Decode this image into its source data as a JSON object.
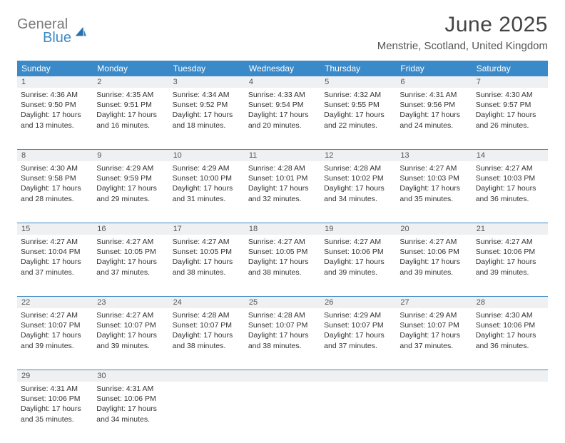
{
  "brand": {
    "part1": "General",
    "part2": "Blue"
  },
  "title": "June 2025",
  "location": "Menstrie, Scotland, United Kingdom",
  "colors": {
    "header_bg": "#3a8ac9",
    "header_text": "#ffffff",
    "daynum_bg": "#eef0f2",
    "border": "#3a8ac9",
    "text": "#333333"
  },
  "dayNames": [
    "Sunday",
    "Monday",
    "Tuesday",
    "Wednesday",
    "Thursday",
    "Friday",
    "Saturday"
  ],
  "weeks": [
    [
      {
        "n": "1",
        "sr": "4:36 AM",
        "ss": "9:50 PM",
        "dl": "17 hours and 13 minutes."
      },
      {
        "n": "2",
        "sr": "4:35 AM",
        "ss": "9:51 PM",
        "dl": "17 hours and 16 minutes."
      },
      {
        "n": "3",
        "sr": "4:34 AM",
        "ss": "9:52 PM",
        "dl": "17 hours and 18 minutes."
      },
      {
        "n": "4",
        "sr": "4:33 AM",
        "ss": "9:54 PM",
        "dl": "17 hours and 20 minutes."
      },
      {
        "n": "5",
        "sr": "4:32 AM",
        "ss": "9:55 PM",
        "dl": "17 hours and 22 minutes."
      },
      {
        "n": "6",
        "sr": "4:31 AM",
        "ss": "9:56 PM",
        "dl": "17 hours and 24 minutes."
      },
      {
        "n": "7",
        "sr": "4:30 AM",
        "ss": "9:57 PM",
        "dl": "17 hours and 26 minutes."
      }
    ],
    [
      {
        "n": "8",
        "sr": "4:30 AM",
        "ss": "9:58 PM",
        "dl": "17 hours and 28 minutes."
      },
      {
        "n": "9",
        "sr": "4:29 AM",
        "ss": "9:59 PM",
        "dl": "17 hours and 29 minutes."
      },
      {
        "n": "10",
        "sr": "4:29 AM",
        "ss": "10:00 PM",
        "dl": "17 hours and 31 minutes."
      },
      {
        "n": "11",
        "sr": "4:28 AM",
        "ss": "10:01 PM",
        "dl": "17 hours and 32 minutes."
      },
      {
        "n": "12",
        "sr": "4:28 AM",
        "ss": "10:02 PM",
        "dl": "17 hours and 34 minutes."
      },
      {
        "n": "13",
        "sr": "4:27 AM",
        "ss": "10:03 PM",
        "dl": "17 hours and 35 minutes."
      },
      {
        "n": "14",
        "sr": "4:27 AM",
        "ss": "10:03 PM",
        "dl": "17 hours and 36 minutes."
      }
    ],
    [
      {
        "n": "15",
        "sr": "4:27 AM",
        "ss": "10:04 PM",
        "dl": "17 hours and 37 minutes."
      },
      {
        "n": "16",
        "sr": "4:27 AM",
        "ss": "10:05 PM",
        "dl": "17 hours and 37 minutes."
      },
      {
        "n": "17",
        "sr": "4:27 AM",
        "ss": "10:05 PM",
        "dl": "17 hours and 38 minutes."
      },
      {
        "n": "18",
        "sr": "4:27 AM",
        "ss": "10:05 PM",
        "dl": "17 hours and 38 minutes."
      },
      {
        "n": "19",
        "sr": "4:27 AM",
        "ss": "10:06 PM",
        "dl": "17 hours and 39 minutes."
      },
      {
        "n": "20",
        "sr": "4:27 AM",
        "ss": "10:06 PM",
        "dl": "17 hours and 39 minutes."
      },
      {
        "n": "21",
        "sr": "4:27 AM",
        "ss": "10:06 PM",
        "dl": "17 hours and 39 minutes."
      }
    ],
    [
      {
        "n": "22",
        "sr": "4:27 AM",
        "ss": "10:07 PM",
        "dl": "17 hours and 39 minutes."
      },
      {
        "n": "23",
        "sr": "4:27 AM",
        "ss": "10:07 PM",
        "dl": "17 hours and 39 minutes."
      },
      {
        "n": "24",
        "sr": "4:28 AM",
        "ss": "10:07 PM",
        "dl": "17 hours and 38 minutes."
      },
      {
        "n": "25",
        "sr": "4:28 AM",
        "ss": "10:07 PM",
        "dl": "17 hours and 38 minutes."
      },
      {
        "n": "26",
        "sr": "4:29 AM",
        "ss": "10:07 PM",
        "dl": "17 hours and 37 minutes."
      },
      {
        "n": "27",
        "sr": "4:29 AM",
        "ss": "10:07 PM",
        "dl": "17 hours and 37 minutes."
      },
      {
        "n": "28",
        "sr": "4:30 AM",
        "ss": "10:06 PM",
        "dl": "17 hours and 36 minutes."
      }
    ],
    [
      {
        "n": "29",
        "sr": "4:31 AM",
        "ss": "10:06 PM",
        "dl": "17 hours and 35 minutes."
      },
      {
        "n": "30",
        "sr": "4:31 AM",
        "ss": "10:06 PM",
        "dl": "17 hours and 34 minutes."
      },
      null,
      null,
      null,
      null,
      null
    ]
  ],
  "labels": {
    "sunrise": "Sunrise: ",
    "sunset": "Sunset: ",
    "daylight": "Daylight: "
  }
}
